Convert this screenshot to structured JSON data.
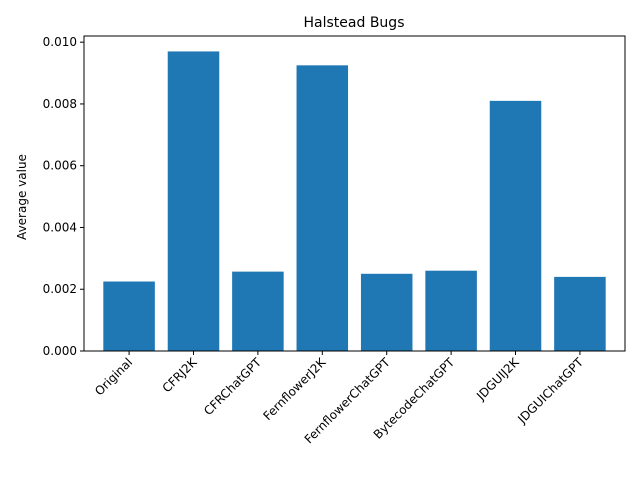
{
  "chart_data": {
    "type": "bar",
    "title": "Halstead Bugs",
    "xlabel": "",
    "ylabel": "Average value",
    "categories": [
      "Original",
      "CFRJ2K",
      "CFRChatGPT",
      "FernflowerJ2K",
      "FernflowerChatGPT",
      "BytecodeChatGPT",
      "JDGUIJ2K",
      "JDGUIChatGPT"
    ],
    "values": [
      0.00225,
      0.0097,
      0.00257,
      0.00925,
      0.0025,
      0.0026,
      0.0081,
      0.0024
    ],
    "ylim": [
      0,
      0.0102
    ],
    "yticks": [
      "0.000",
      "0.002",
      "0.004",
      "0.006",
      "0.008",
      "0.010"
    ],
    "grid": false,
    "bar_color": "#1f77b4"
  }
}
